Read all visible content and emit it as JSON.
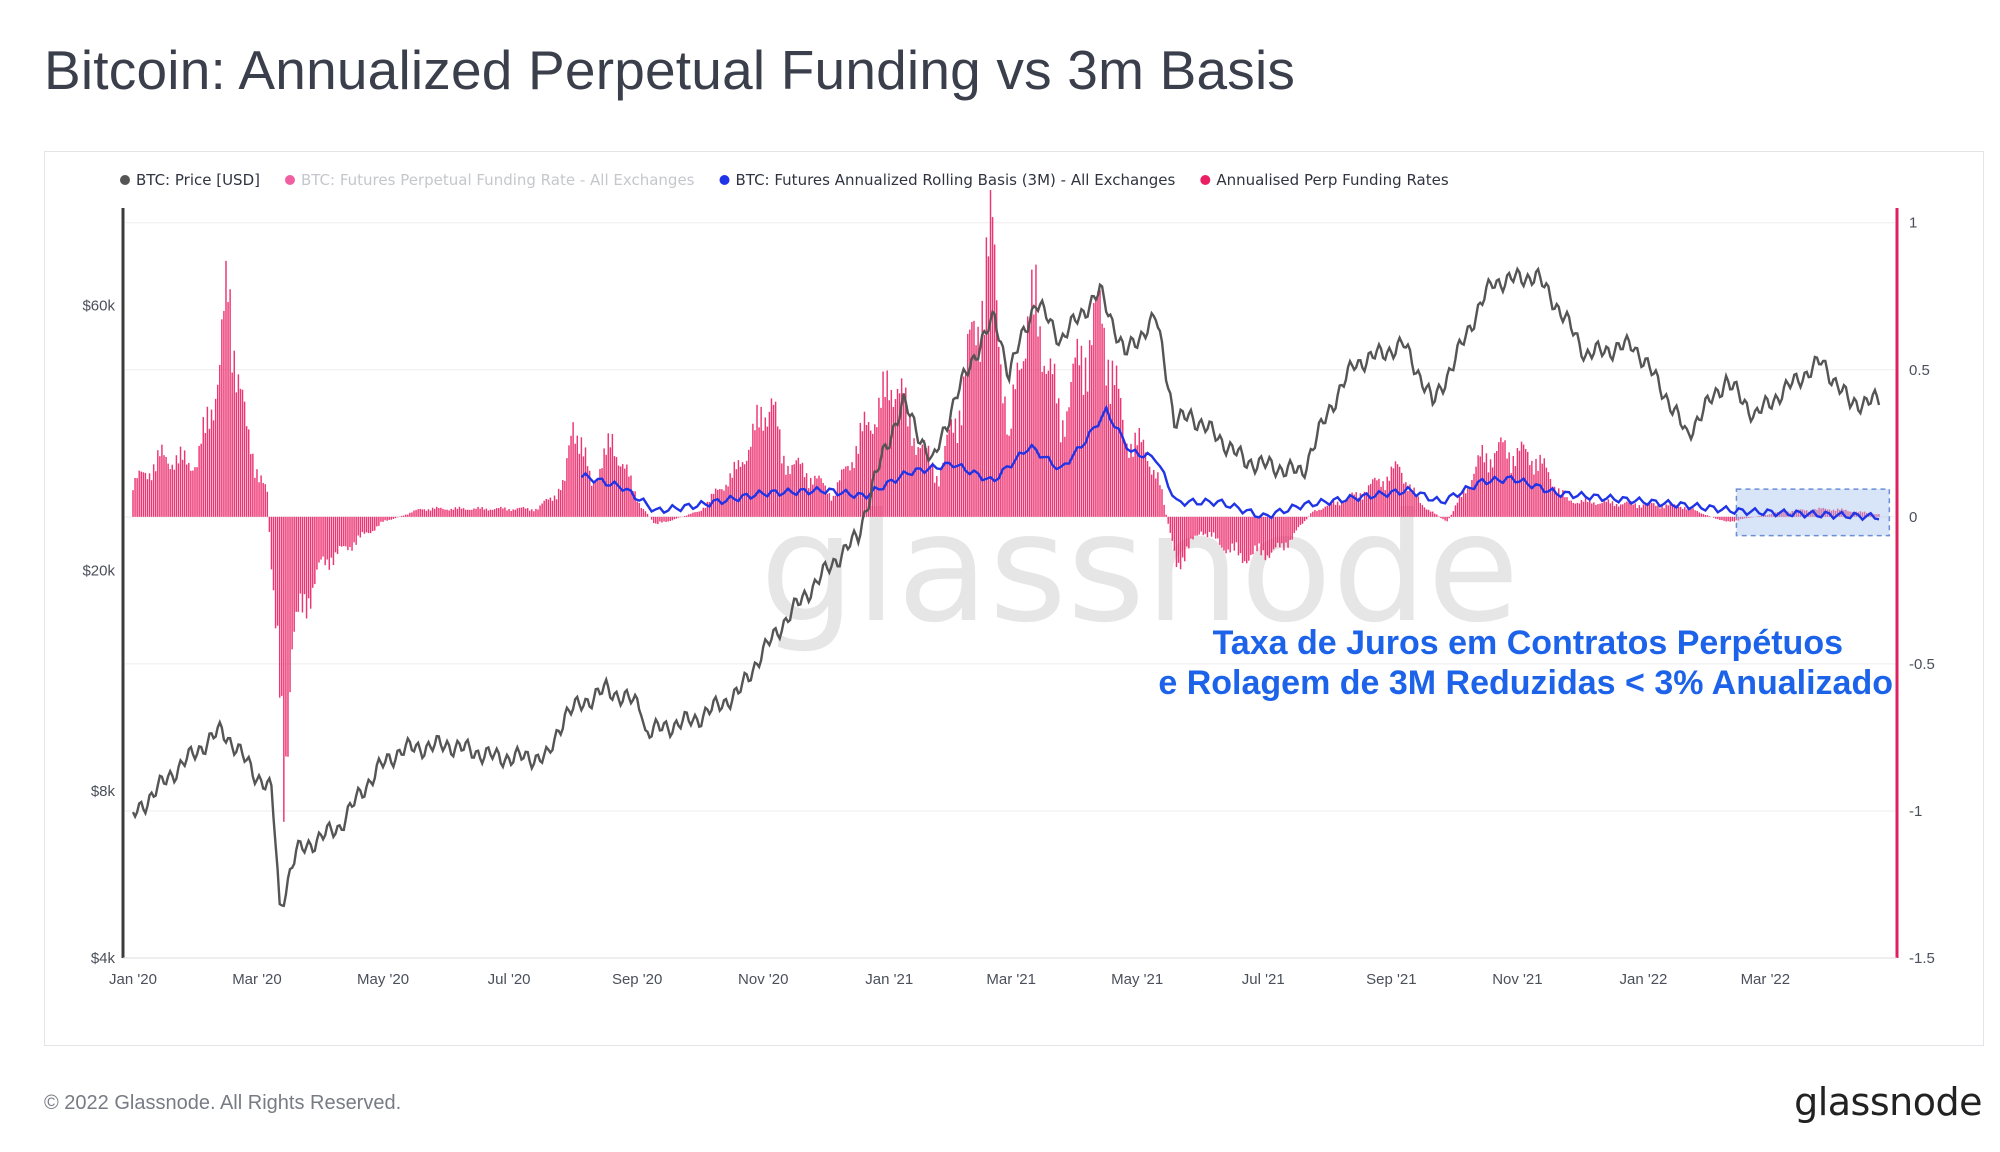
{
  "page": {
    "title": "Bitcoin: Annualized Perpetual Funding vs 3m Basis",
    "copyright": "© 2022 Glassnode. All Rights Reserved.",
    "brand": "glassnode"
  },
  "colors": {
    "price": "#555555",
    "funding_faded": "#f05fa2",
    "basis": "#1f34e6",
    "annualised": "#ea1f63",
    "axis_right": "#e0205c",
    "annotation": "#1d63ea",
    "highlight": "#a9c5f0"
  },
  "chart_data": {
    "type": "line",
    "watermark": "glassnode",
    "legend_position": "top-left",
    "grid": true,
    "legend": [
      {
        "name": "BTC: Price [USD]",
        "color": "#555555",
        "faded": false
      },
      {
        "name": "BTC: Futures Perpetual Funding Rate - All Exchanges",
        "color": "#f05fa2",
        "faded": true
      },
      {
        "name": "BTC: Futures Annualized Rolling Basis (3M) - All Exchanges",
        "color": "#1f34e6",
        "faded": false
      },
      {
        "name": "Annualised Perp Funding Rates",
        "color": "#ea1f63",
        "faded": false
      }
    ],
    "x_ticks": [
      "Jan '20",
      "Mar '20",
      "May '20",
      "Jul '20",
      "Sep '20",
      "Nov '20",
      "Jan '21",
      "Mar '21",
      "May '21",
      "Jul '21",
      "Sep '21",
      "Nov '21",
      "Jan '22",
      "Mar '22"
    ],
    "x_range": [
      "2020-01-01",
      "2022-04-25"
    ],
    "y_left": {
      "scale": "log",
      "range": [
        4000,
        90000
      ],
      "ticks": [
        {
          "value": 4000,
          "label": "$4k"
        },
        {
          "value": 8000,
          "label": "$8k"
        },
        {
          "value": 20000,
          "label": "$20k"
        },
        {
          "value": 60000,
          "label": "$60k"
        }
      ]
    },
    "y_right": {
      "scale": "linear",
      "range": [
        -1.5,
        1.05
      ],
      "ticks": [
        {
          "value": 1,
          "label": "1"
        },
        {
          "value": 0.5,
          "label": "0.5"
        },
        {
          "value": 0,
          "label": "0"
        },
        {
          "value": -0.5,
          "label": "-0.5"
        },
        {
          "value": -1,
          "label": "-1"
        },
        {
          "value": -1.5,
          "label": "-1.5"
        }
      ]
    },
    "series": [
      {
        "name": "BTC: Price [USD]",
        "axis": "left",
        "kind": "line",
        "points": [
          [
            "2020-01-01",
            7200
          ],
          [
            "2020-01-20",
            8600
          ],
          [
            "2020-02-13",
            10300
          ],
          [
            "2020-02-29",
            8600
          ],
          [
            "2020-03-08",
            8000
          ],
          [
            "2020-03-12",
            4900
          ],
          [
            "2020-03-14",
            5200
          ],
          [
            "2020-03-20",
            6200
          ],
          [
            "2020-04-10",
            6900
          ],
          [
            "2020-04-29",
            8800
          ],
          [
            "2020-05-10",
            9500
          ],
          [
            "2020-06-01",
            9700
          ],
          [
            "2020-06-25",
            9200
          ],
          [
            "2020-07-20",
            9200
          ],
          [
            "2020-07-28",
            11000
          ],
          [
            "2020-08-17",
            12200
          ],
          [
            "2020-09-03",
            11400
          ],
          [
            "2020-09-05",
            10200
          ],
          [
            "2020-09-30",
            10800
          ],
          [
            "2020-10-20",
            12000
          ],
          [
            "2020-11-05",
            15000
          ],
          [
            "2020-11-25",
            18700
          ],
          [
            "2020-12-17",
            23000
          ],
          [
            "2021-01-08",
            40000
          ],
          [
            "2021-01-22",
            31000
          ],
          [
            "2021-02-08",
            46000
          ],
          [
            "2021-02-21",
            57000
          ],
          [
            "2021-02-28",
            45000
          ],
          [
            "2021-03-13",
            61000
          ],
          [
            "2021-03-25",
            52000
          ],
          [
            "2021-04-13",
            63500
          ],
          [
            "2021-04-25",
            49000
          ],
          [
            "2021-05-10",
            57000
          ],
          [
            "2021-05-19",
            37000
          ],
          [
            "2021-05-27",
            38000
          ],
          [
            "2021-06-22",
            31500
          ],
          [
            "2021-07-20",
            30000
          ],
          [
            "2021-08-14",
            47000
          ],
          [
            "2021-09-07",
            51000
          ],
          [
            "2021-09-21",
            40000
          ],
          [
            "2021-10-01",
            47000
          ],
          [
            "2021-10-20",
            66000
          ],
          [
            "2021-11-10",
            68000
          ],
          [
            "2021-12-04",
            49000
          ],
          [
            "2021-12-27",
            51000
          ],
          [
            "2022-01-22",
            35000
          ],
          [
            "2022-02-10",
            44000
          ],
          [
            "2022-02-24",
            38000
          ],
          [
            "2022-03-28",
            47500
          ],
          [
            "2022-04-11",
            40000
          ],
          [
            "2022-04-25",
            40500
          ]
        ]
      },
      {
        "name": "BTC: Futures Annualized Rolling Basis (3M) - All Exchanges",
        "axis": "right",
        "kind": "line",
        "points": [
          [
            "2020-08-05",
            0.14
          ],
          [
            "2020-08-25",
            0.1
          ],
          [
            "2020-09-10",
            0.02
          ],
          [
            "2020-10-01",
            0.04
          ],
          [
            "2020-11-01",
            0.08
          ],
          [
            "2020-12-01",
            0.09
          ],
          [
            "2020-12-20",
            0.07
          ],
          [
            "2021-01-10",
            0.15
          ],
          [
            "2021-02-01",
            0.18
          ],
          [
            "2021-02-20",
            0.12
          ],
          [
            "2021-03-10",
            0.24
          ],
          [
            "2021-03-25",
            0.16
          ],
          [
            "2021-04-05",
            0.25
          ],
          [
            "2021-04-16",
            0.36
          ],
          [
            "2021-04-28",
            0.22
          ],
          [
            "2021-05-10",
            0.2
          ],
          [
            "2021-05-20",
            0.05
          ],
          [
            "2021-06-10",
            0.05
          ],
          [
            "2021-07-01",
            0.0
          ],
          [
            "2021-07-20",
            0.04
          ],
          [
            "2021-08-20",
            0.07
          ],
          [
            "2021-09-10",
            0.09
          ],
          [
            "2021-09-25",
            0.05
          ],
          [
            "2021-10-15",
            0.12
          ],
          [
            "2021-10-30",
            0.13
          ],
          [
            "2021-11-20",
            0.08
          ],
          [
            "2021-12-20",
            0.06
          ],
          [
            "2022-01-20",
            0.04
          ],
          [
            "2022-02-15",
            0.02
          ],
          [
            "2022-03-20",
            0.01
          ],
          [
            "2022-04-25",
            0.0
          ]
        ]
      },
      {
        "name": "Annualised Perp Funding Rates",
        "axis": "right",
        "kind": "bar",
        "points": [
          [
            "2020-01-01",
            0.12
          ],
          [
            "2020-01-15",
            0.22
          ],
          [
            "2020-02-01",
            0.2
          ],
          [
            "2020-02-12",
            0.55
          ],
          [
            "2020-02-16",
            0.85
          ],
          [
            "2020-02-25",
            0.3
          ],
          [
            "2020-03-06",
            0.08
          ],
          [
            "2020-03-12",
            -0.7
          ],
          [
            "2020-03-14",
            -1.0
          ],
          [
            "2020-03-18",
            -0.45
          ],
          [
            "2020-04-01",
            -0.18
          ],
          [
            "2020-04-20",
            -0.08
          ],
          [
            "2020-05-01",
            -0.02
          ],
          [
            "2020-05-20",
            0.03
          ],
          [
            "2020-06-15",
            0.03
          ],
          [
            "2020-07-15",
            0.03
          ],
          [
            "2020-07-28",
            0.12
          ],
          [
            "2020-08-01",
            0.38
          ],
          [
            "2020-08-10",
            0.12
          ],
          [
            "2020-08-20",
            0.28
          ],
          [
            "2020-09-03",
            0.04
          ],
          [
            "2020-09-10",
            -0.03
          ],
          [
            "2020-10-01",
            0.02
          ],
          [
            "2020-10-20",
            0.18
          ],
          [
            "2020-11-05",
            0.45
          ],
          [
            "2020-11-10",
            0.22
          ],
          [
            "2020-11-25",
            0.15
          ],
          [
            "2020-12-05",
            0.08
          ],
          [
            "2020-12-20",
            0.32
          ],
          [
            "2021-01-05",
            0.52
          ],
          [
            "2021-01-10",
            0.35
          ],
          [
            "2021-01-25",
            0.15
          ],
          [
            "2021-02-05",
            0.45
          ],
          [
            "2021-02-12",
            0.72
          ],
          [
            "2021-02-20",
            1.02
          ],
          [
            "2021-02-28",
            0.25
          ],
          [
            "2021-03-05",
            0.62
          ],
          [
            "2021-03-13",
            0.78
          ],
          [
            "2021-03-25",
            0.35
          ],
          [
            "2021-04-05",
            0.62
          ],
          [
            "2021-04-14",
            0.75
          ],
          [
            "2021-04-25",
            0.3
          ],
          [
            "2021-05-05",
            0.25
          ],
          [
            "2021-05-12",
            0.12
          ],
          [
            "2021-05-20",
            -0.18
          ],
          [
            "2021-06-01",
            -0.05
          ],
          [
            "2021-06-20",
            -0.15
          ],
          [
            "2021-07-10",
            -0.12
          ],
          [
            "2021-07-25",
            0.02
          ],
          [
            "2021-08-15",
            0.08
          ],
          [
            "2021-09-05",
            0.18
          ],
          [
            "2021-09-15",
            0.05
          ],
          [
            "2021-09-28",
            -0.02
          ],
          [
            "2021-10-15",
            0.22
          ],
          [
            "2021-10-25",
            0.25
          ],
          [
            "2021-11-10",
            0.22
          ],
          [
            "2021-11-25",
            0.06
          ],
          [
            "2021-12-20",
            0.05
          ],
          [
            "2022-01-20",
            0.04
          ],
          [
            "2022-02-10",
            -0.02
          ],
          [
            "2022-03-10",
            0.02
          ],
          [
            "2022-04-01",
            0.03
          ],
          [
            "2022-04-25",
            0.01
          ]
        ]
      }
    ],
    "highlight_box": {
      "x": [
        "2022-02-15",
        "2022-04-30"
      ],
      "y": [
        -0.03,
        0.06
      ]
    },
    "annotation": {
      "lines": [
        "Taxa de Juros em Contratos Perpétuos",
        "e Rolagem de 3M Reduzidas < 3% Anualizado"
      ],
      "color": "#1d63ea"
    }
  }
}
